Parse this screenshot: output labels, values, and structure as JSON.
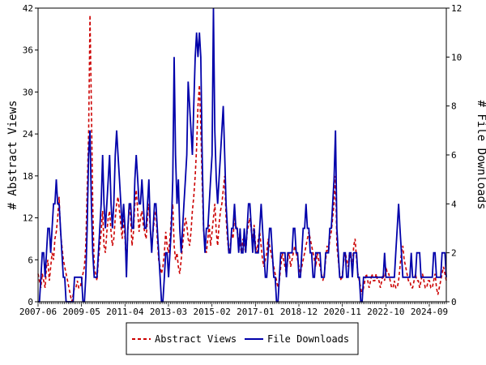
{
  "colors": {
    "views": "#cc0000",
    "downloads": "#0000aa",
    "axis": "#000000",
    "background": "#ffffff"
  },
  "chart_data": {
    "type": "line",
    "grid": false,
    "legend_position": "bottom",
    "x_tick_labels": [
      "2007-06",
      "2009-05",
      "2011-04",
      "2013-03",
      "2015-02",
      "2017-01",
      "2018-12",
      "2020-11",
      "2022-10",
      "2024-09"
    ],
    "y_left": {
      "label": "# Abstract Views",
      "ylim": [
        0,
        42
      ],
      "ticks": [
        0,
        6,
        12,
        18,
        24,
        30,
        36,
        42
      ]
    },
    "y_right": {
      "label": "# File Downloads",
      "ylim": [
        0,
        12
      ],
      "ticks": [
        0,
        2,
        4,
        6,
        8,
        10,
        12
      ]
    },
    "series": [
      {
        "name": "Abstract Views",
        "axis": "left",
        "style": "dashed",
        "values": [
          4,
          3,
          2,
          4,
          3,
          2,
          5,
          6,
          3,
          5,
          7,
          6,
          9,
          10,
          12,
          15,
          10,
          8,
          6,
          5,
          4,
          3,
          2,
          1,
          0,
          1,
          2,
          2,
          3,
          2,
          2,
          3,
          4,
          5,
          8,
          16,
          24,
          41,
          28,
          14,
          5,
          4,
          3,
          6,
          8,
          10,
          13,
          8,
          7,
          10,
          12,
          13,
          10,
          8,
          9,
          12,
          14,
          15,
          13,
          11,
          9,
          12,
          9,
          5,
          10,
          14,
          12,
          8,
          10,
          14,
          16,
          13,
          10,
          12,
          13,
          11,
          10,
          9,
          12,
          14,
          10,
          8,
          10,
          12,
          13,
          9,
          6,
          5,
          4,
          5,
          7,
          10,
          8,
          7,
          9,
          12,
          14,
          8,
          6,
          7,
          5,
          4,
          6,
          8,
          10,
          12,
          11,
          9,
          8,
          10,
          13,
          15,
          18,
          22,
          28,
          31,
          25,
          17,
          10,
          8,
          7,
          9,
          11,
          8,
          10,
          12,
          14,
          10,
          8,
          11,
          13,
          14,
          16,
          18,
          12,
          9,
          7,
          8,
          10,
          9,
          12,
          11,
          10,
          9,
          8,
          7,
          9,
          8,
          7,
          10,
          11,
          12,
          10,
          9,
          11,
          8,
          7,
          9,
          10,
          8,
          6,
          5,
          6,
          7,
          9,
          8,
          7,
          6,
          5,
          4,
          3,
          2,
          3,
          5,
          7,
          6,
          5,
          4,
          6,
          7,
          5,
          6,
          7,
          8,
          7,
          6,
          5,
          4,
          5,
          6,
          7,
          8,
          9,
          10,
          9,
          8,
          7,
          6,
          5,
          7,
          6,
          5,
          4,
          3,
          4,
          6,
          8,
          7,
          9,
          10,
          12,
          14,
          18,
          8,
          6,
          4,
          3,
          4,
          6,
          7,
          6,
          5,
          7,
          6,
          5,
          8,
          9,
          6,
          4,
          3,
          2,
          1,
          2,
          3,
          4,
          3,
          2,
          3,
          4,
          3,
          3,
          4,
          3,
          3,
          2,
          3,
          4,
          3,
          5,
          4,
          4,
          3,
          2,
          2,
          3,
          2,
          2,
          3,
          5,
          7,
          8,
          6,
          5,
          4,
          3,
          3,
          2,
          2,
          3,
          4,
          3,
          3,
          2,
          3,
          4,
          3,
          2,
          2,
          3,
          3,
          2,
          2,
          3,
          4,
          2,
          1,
          2,
          3,
          4,
          5,
          4,
          3
        ]
      },
      {
        "name": "File Downloads",
        "axis": "right",
        "style": "solid",
        "values": [
          0,
          0,
          1,
          2,
          2,
          1,
          2,
          3,
          3,
          2,
          3,
          4,
          4,
          5,
          4,
          4,
          3,
          2,
          1,
          1,
          0,
          0,
          0,
          0,
          0,
          0,
          1,
          1,
          1,
          1,
          1,
          1,
          0,
          0,
          1,
          3,
          6,
          7,
          4,
          2,
          1,
          1,
          1,
          2,
          3,
          4,
          6,
          4,
          3,
          4,
          5,
          6,
          4,
          3,
          4,
          6,
          7,
          6,
          5,
          4,
          3,
          4,
          3,
          1,
          3,
          4,
          4,
          3,
          3,
          5,
          6,
          5,
          4,
          4,
          5,
          4,
          3,
          3,
          4,
          5,
          3,
          2,
          3,
          4,
          4,
          3,
          2,
          1,
          0,
          0,
          1,
          2,
          2,
          1,
          2,
          3,
          5,
          10,
          6,
          4,
          5,
          3,
          2,
          3,
          4,
          5,
          6,
          9,
          8,
          7,
          6,
          8,
          10,
          11,
          10,
          11,
          10,
          6,
          3,
          2,
          3,
          3,
          4,
          5,
          6,
          12,
          7,
          5,
          4,
          5,
          6,
          7,
          8,
          6,
          4,
          3,
          2,
          2,
          3,
          3,
          4,
          3,
          3,
          2,
          3,
          2,
          2,
          3,
          2,
          3,
          4,
          4,
          3,
          2,
          3,
          2,
          2,
          2,
          3,
          4,
          3,
          2,
          1,
          1,
          2,
          3,
          3,
          2,
          1,
          1,
          0,
          0,
          1,
          2,
          2,
          2,
          2,
          1,
          2,
          2,
          2,
          2,
          3,
          3,
          2,
          2,
          1,
          1,
          2,
          3,
          3,
          4,
          3,
          3,
          2,
          2,
          1,
          1,
          2,
          2,
          2,
          2,
          1,
          1,
          1,
          2,
          2,
          2,
          3,
          3,
          4,
          5,
          7,
          3,
          2,
          1,
          1,
          1,
          2,
          2,
          1,
          1,
          2,
          2,
          1,
          2,
          2,
          2,
          1,
          1,
          0,
          0,
          1,
          1,
          1,
          1,
          1,
          1,
          1,
          1,
          1,
          1,
          1,
          1,
          1,
          1,
          1,
          2,
          1,
          1,
          1,
          1,
          1,
          1,
          1,
          2,
          3,
          4,
          3,
          2,
          1,
          1,
          1,
          1,
          1,
          1,
          2,
          1,
          1,
          1,
          2,
          2,
          2,
          1,
          1,
          1,
          1,
          1,
          1,
          1,
          1,
          1,
          2,
          2,
          1,
          1,
          1,
          1,
          2,
          2,
          2,
          1
        ]
      }
    ]
  }
}
